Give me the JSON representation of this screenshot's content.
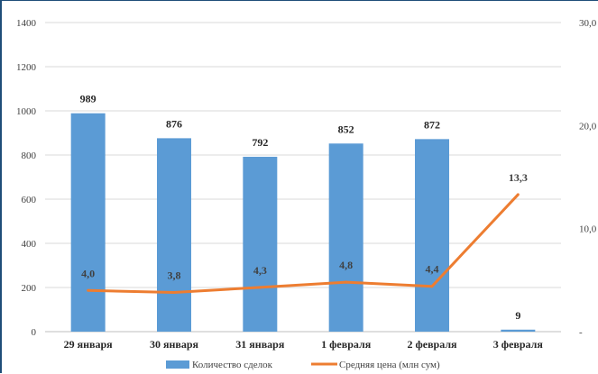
{
  "chart_data": {
    "type": "bar",
    "categories": [
      "29 января",
      "30 января",
      "31 января",
      "1 февраля",
      "2 февраля",
      "3 февраля"
    ],
    "series": [
      {
        "name": "Количество сделок",
        "type": "bar",
        "axis": "left",
        "values": [
          989,
          876,
          792,
          852,
          872,
          9
        ],
        "labels": [
          "989",
          "876",
          "792",
          "852",
          "872",
          "9"
        ],
        "color": "#5b9bd5"
      },
      {
        "name": "Средняя цена (млн сум)",
        "type": "line",
        "axis": "right",
        "values": [
          4.0,
          3.8,
          4.3,
          4.8,
          4.4,
          13.3
        ],
        "labels": [
          "4,0",
          "3,8",
          "4,3",
          "4,8",
          "4,4",
          "13,3"
        ],
        "color": "#ed7d31"
      }
    ],
    "y_left": {
      "ylim": [
        0,
        1400
      ],
      "ticks": [
        0,
        200,
        400,
        600,
        800,
        1000,
        1200,
        1400
      ],
      "tick_labels": [
        "0",
        "200",
        "400",
        "600",
        "800",
        "1000",
        "1200",
        "1400"
      ]
    },
    "y_right": {
      "ylim": [
        0,
        30
      ],
      "ticks": [
        0,
        10,
        20,
        30
      ],
      "tick_labels": [
        "-",
        "10,0",
        "20,0",
        "30,0"
      ]
    },
    "grid": true,
    "legend": "bottom",
    "title": "",
    "xlabel": "",
    "ylabel": ""
  }
}
